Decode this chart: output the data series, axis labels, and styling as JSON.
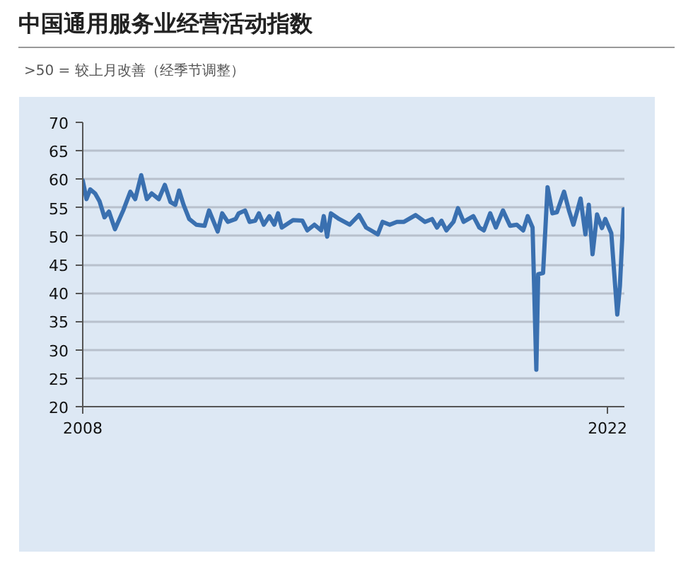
{
  "chart_data": {
    "type": "line",
    "title": "中国通用服务业经营活动指数",
    "subtitle": ">50 = 较上月改善（经季节调整）",
    "x": [
      2008.0,
      2008.1,
      2008.2,
      2008.33,
      2008.45,
      2008.58,
      2008.7,
      2008.86,
      2009.08,
      2009.27,
      2009.4,
      2009.56,
      2009.71,
      2009.84,
      2010.03,
      2010.19,
      2010.34,
      2010.47,
      2010.57,
      2010.69,
      2010.84,
      2011.03,
      2011.25,
      2011.37,
      2011.6,
      2011.72,
      2011.87,
      2012.08,
      2012.16,
      2012.33,
      2012.45,
      2012.6,
      2012.7,
      2012.83,
      2012.98,
      2013.11,
      2013.21,
      2013.31,
      2013.61,
      2013.86,
      2013.99,
      2014.18,
      2014.36,
      2014.43,
      2014.52,
      2014.62,
      2014.84,
      2015.12,
      2015.37,
      2015.56,
      2015.69,
      2015.87,
      2016.0,
      2016.19,
      2016.38,
      2016.57,
      2016.88,
      2017.13,
      2017.32,
      2017.45,
      2017.57,
      2017.7,
      2017.89,
      2018.01,
      2018.16,
      2018.42,
      2018.58,
      2018.7,
      2018.87,
      2019.02,
      2019.21,
      2019.4,
      2019.58,
      2019.75,
      2019.87,
      2020.0,
      2020.1,
      2020.15,
      2020.28,
      2020.4,
      2020.53,
      2020.65,
      2020.84,
      2020.97,
      2021.09,
      2021.28,
      2021.41,
      2021.5,
      2021.6,
      2021.72,
      2021.85,
      2021.94,
      2022.1,
      2022.26,
      2022.33,
      2022.43
    ],
    "values": [
      59.8,
      56.5,
      58.2,
      57.5,
      56.1,
      53.3,
      54.3,
      51.2,
      54.5,
      57.8,
      56.5,
      60.7,
      56.5,
      57.5,
      56.5,
      59,
      56,
      55.5,
      58,
      55.5,
      53,
      52,
      51.8,
      54.5,
      50.8,
      54,
      52.5,
      53,
      54,
      54.5,
      52.5,
      52.7,
      54,
      52,
      53.5,
      52,
      54,
      51.5,
      52.8,
      52.7,
      51,
      52,
      51,
      53.5,
      49.9,
      54,
      53,
      52,
      53.7,
      51.5,
      51,
      50.3,
      52.5,
      52,
      52.5,
      52.5,
      53.7,
      52.5,
      53,
      51.5,
      52.7,
      51,
      52.5,
      54.9,
      52.5,
      53.5,
      51.5,
      51,
      54,
      51.5,
      54.5,
      51.8,
      52,
      51,
      53.5,
      51.5,
      26.5,
      43.3,
      43.5,
      58.6,
      54,
      54.2,
      57.8,
      54.5,
      52,
      56.6,
      50.3,
      55.5,
      46.8,
      53.8,
      51.4,
      53,
      50.5,
      36.2,
      41.2,
      54.7
    ],
    "color": "#3a70b0",
    "xlim": [
      2008,
      2022.45
    ],
    "xticks": [
      2008,
      2022
    ],
    "ylim": [
      20,
      70
    ],
    "yticks": [
      20,
      25,
      30,
      35,
      40,
      45,
      50,
      55,
      60,
      65,
      70
    ],
    "grid": "y"
  }
}
